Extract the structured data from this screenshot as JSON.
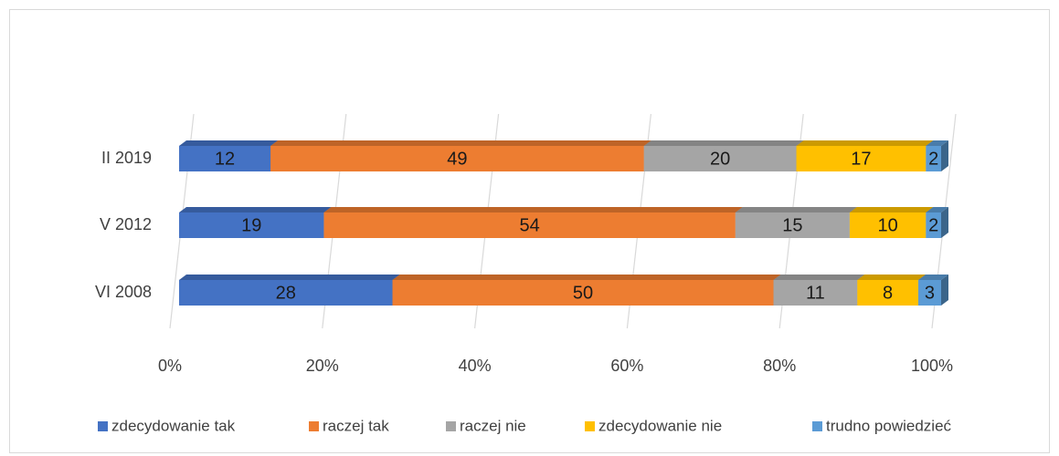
{
  "chart_data": {
    "type": "bar",
    "orientation": "horizontal",
    "stacked": "percent",
    "categories": [
      "II 2019",
      "V 2012",
      "VI 2008"
    ],
    "series": [
      {
        "name": "zdecydowanie tak",
        "color": "#4472c4",
        "values": [
          12,
          19,
          28
        ]
      },
      {
        "name": "raczej tak",
        "color": "#ed7d31",
        "values": [
          49,
          54,
          50
        ]
      },
      {
        "name": "raczej nie",
        "color": "#a5a5a5",
        "values": [
          20,
          15,
          11
        ]
      },
      {
        "name": "zdecydowanie nie",
        "color": "#ffc000",
        "values": [
          17,
          10,
          8
        ]
      },
      {
        "name": "trudno powiedzieć",
        "color": "#5b9bd5",
        "values": [
          2,
          2,
          3
        ]
      }
    ],
    "xlim": [
      0,
      100
    ],
    "xticks": [
      {
        "value": 0,
        "label": "0%"
      },
      {
        "value": 20,
        "label": "20%"
      },
      {
        "value": 40,
        "label": "40%"
      },
      {
        "value": 60,
        "label": "60%"
      },
      {
        "value": 80,
        "label": "80%"
      },
      {
        "value": 100,
        "label": "100%"
      }
    ],
    "grid": true,
    "legend": "bottom"
  }
}
